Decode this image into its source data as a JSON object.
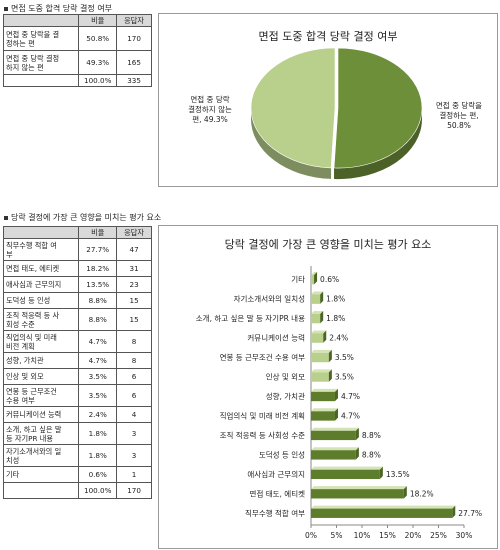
{
  "section1": {
    "title": "면접 도중 합격 당락 결정 여부"
  },
  "section2": {
    "title": "당락 결정에 가장 큰 영향을 미치는 평가 요소"
  },
  "table1": {
    "headers": [
      "",
      "비율",
      "응답자"
    ],
    "rows": [
      [
        "면접 중 당락을 결\n정하는 편",
        "50.8%",
        "170"
      ],
      [
        "면접 중 당락 결정\n하지 않는 편",
        "49.3%",
        "165"
      ],
      [
        "",
        "100.0%",
        "335"
      ]
    ]
  },
  "table2": {
    "headers": [
      "",
      "비율",
      "응답자"
    ],
    "rows": [
      [
        "직무수행 적합 여\n부",
        "27.7%",
        "47"
      ],
      [
        "면접 태도, 에티켓",
        "18.2%",
        "31"
      ],
      [
        "애사심과 근무의지",
        "13.5%",
        "23"
      ],
      [
        "도덕성 등 인성",
        "8.8%",
        "15"
      ],
      [
        "조직 적응력 등 사\n회성 수준",
        "8.8%",
        "15"
      ],
      [
        "직업의식 및 미래\n비전 계획",
        "4.7%",
        "8"
      ],
      [
        "성향, 가치관",
        "4.7%",
        "8"
      ],
      [
        "인상 및 외모",
        "3.5%",
        "6"
      ],
      [
        "연봉 등 근무조건\n수용 여부",
        "3.5%",
        "6"
      ],
      [
        "커뮤니케이션 능력",
        "2.4%",
        "4"
      ],
      [
        "소개, 하고 싶은 말\n등 자기PR 내용",
        "1.8%",
        "3"
      ],
      [
        "자기소개서와의 일\n치성",
        "1.8%",
        "3"
      ],
      [
        "기타",
        "0.6%",
        "1"
      ],
      [
        "",
        "100.0%",
        "170"
      ]
    ]
  },
  "chart_data": [
    {
      "type": "pie",
      "title": "면접 도중 합격 당락 결정 여부",
      "slices": [
        {
          "label": "면접 중 당락을\n결정하는 편,\n50.8%",
          "value": 50.8,
          "color": "#6e8f3a"
        },
        {
          "label": "면접 중 당락\n결정하지 않는\n편, 49.3%",
          "value": 49.3,
          "color": "#b9cf8c"
        }
      ]
    },
    {
      "type": "bar",
      "orientation": "horizontal",
      "title": "당락 결정에 가장 큰 영향을 미치는 평가 요소",
      "categories": [
        "기타",
        "자기소개서와의 일치성",
        "소개, 하고 싶은 말 등 자기PR 내용",
        "커뮤니케이션 능력",
        "연봉 등 근무조건 수용 여부",
        "인상 및 외모",
        "성향, 가치관",
        "직업의식 및 미래 비전 계획",
        "조직 적응력 등 사회성 수준",
        "도덕성 등 인성",
        "애사심과 근무의지",
        "면접 태도, 에티켓",
        "직무수행 적합 여부"
      ],
      "values": [
        0.6,
        1.8,
        1.8,
        2.4,
        3.5,
        3.5,
        4.7,
        4.7,
        8.8,
        8.8,
        13.5,
        18.2,
        27.7
      ],
      "value_labels": [
        "0.6%",
        "1.8%",
        "1.8%",
        "2.4%",
        "3.5%",
        "3.5%",
        "4.7%",
        "4.7%",
        "8.8%",
        "8.8%",
        "13.5%",
        "18.2%",
        "27.7%"
      ],
      "xlim": [
        0,
        30
      ],
      "xticks": [
        "0%",
        "5%",
        "10%",
        "15%",
        "20%",
        "25%",
        "30%"
      ],
      "color_light": "#b9cf8c",
      "color_dark": "#5e7d2c"
    }
  ]
}
